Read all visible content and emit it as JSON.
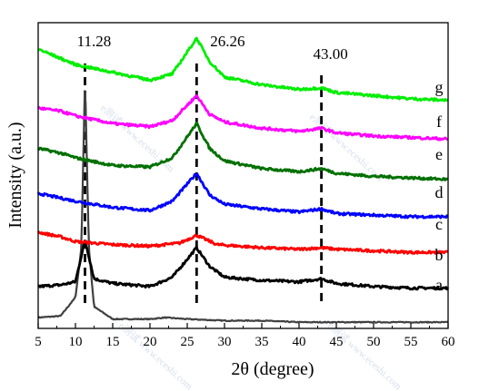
{
  "chart_data": {
    "type": "line",
    "xlabel": "2θ (degree)",
    "ylabel": "Intensity (a.u.)",
    "xlim": [
      5,
      60
    ],
    "x_ticks": [
      5,
      10,
      15,
      20,
      25,
      30,
      35,
      40,
      45,
      50,
      55,
      60
    ],
    "y_ticks_shown": false,
    "grid": false,
    "reference_lines": [
      {
        "x": 11.28,
        "label": "11.28"
      },
      {
        "x": 26.26,
        "label": "26.26"
      },
      {
        "x": 43.0,
        "label": "43.00"
      }
    ],
    "series": [
      {
        "name": "a",
        "color": "#404040",
        "baseline": 0.0,
        "points": [
          [
            5,
            0.05
          ],
          [
            8,
            0.06
          ],
          [
            10,
            0.18
          ],
          [
            10.8,
            0.5
          ],
          [
            11.28,
            1.6
          ],
          [
            11.8,
            0.5
          ],
          [
            12.5,
            0.12
          ],
          [
            15,
            0.04
          ],
          [
            20,
            0.04
          ],
          [
            22,
            0.05
          ],
          [
            25,
            0.04
          ],
          [
            30,
            0.03
          ],
          [
            35,
            0.03
          ],
          [
            40,
            0.02
          ],
          [
            45,
            0.02
          ],
          [
            50,
            0.02
          ],
          [
            55,
            0.02
          ],
          [
            60,
            0.02
          ]
        ]
      },
      {
        "name": "b",
        "color": "#000000",
        "baseline": 0.22,
        "points": [
          [
            5,
            0.25
          ],
          [
            8,
            0.26
          ],
          [
            10,
            0.28
          ],
          [
            11.28,
            0.55
          ],
          [
            12.5,
            0.3
          ],
          [
            15,
            0.27
          ],
          [
            20,
            0.25
          ],
          [
            23,
            0.31
          ],
          [
            26.26,
            0.5
          ],
          [
            28,
            0.38
          ],
          [
            30,
            0.31
          ],
          [
            35,
            0.29
          ],
          [
            40,
            0.28
          ],
          [
            43,
            0.3
          ],
          [
            45,
            0.27
          ],
          [
            50,
            0.25
          ],
          [
            55,
            0.24
          ],
          [
            60,
            0.24
          ]
        ]
      },
      {
        "name": "c",
        "color": "#ff0000",
        "baseline": 0.48,
        "points": [
          [
            5,
            0.6
          ],
          [
            8,
            0.57
          ],
          [
            10,
            0.54
          ],
          [
            15,
            0.52
          ],
          [
            20,
            0.51
          ],
          [
            24,
            0.53
          ],
          [
            26.26,
            0.58
          ],
          [
            29,
            0.52
          ],
          [
            35,
            0.5
          ],
          [
            40,
            0.49
          ],
          [
            43,
            0.5
          ],
          [
            45,
            0.49
          ],
          [
            50,
            0.48
          ],
          [
            55,
            0.47
          ],
          [
            60,
            0.47
          ]
        ]
      },
      {
        "name": "d",
        "color": "#0000ff",
        "baseline": 0.7,
        "points": [
          [
            5,
            0.85
          ],
          [
            8,
            0.82
          ],
          [
            10,
            0.8
          ],
          [
            15,
            0.76
          ],
          [
            20,
            0.74
          ],
          [
            23,
            0.8
          ],
          [
            26.26,
            0.98
          ],
          [
            28,
            0.84
          ],
          [
            30,
            0.78
          ],
          [
            35,
            0.75
          ],
          [
            40,
            0.73
          ],
          [
            43,
            0.75
          ],
          [
            45,
            0.72
          ],
          [
            50,
            0.71
          ],
          [
            55,
            0.7
          ],
          [
            60,
            0.7
          ]
        ]
      },
      {
        "name": "e",
        "color": "#007000",
        "baseline": 0.95,
        "points": [
          [
            5,
            1.14
          ],
          [
            8,
            1.11
          ],
          [
            10,
            1.08
          ],
          [
            15,
            1.03
          ],
          [
            20,
            1.02
          ],
          [
            23,
            1.08
          ],
          [
            26.26,
            1.3
          ],
          [
            28,
            1.14
          ],
          [
            30,
            1.06
          ],
          [
            35,
            1.01
          ],
          [
            40,
            0.99
          ],
          [
            43,
            1.01
          ],
          [
            45,
            0.98
          ],
          [
            50,
            0.96
          ],
          [
            55,
            0.95
          ],
          [
            60,
            0.94
          ]
        ]
      },
      {
        "name": "f",
        "color": "#ff00ff",
        "baseline": 1.2,
        "points": [
          [
            5,
            1.4
          ],
          [
            8,
            1.38
          ],
          [
            10,
            1.35
          ],
          [
            15,
            1.3
          ],
          [
            20,
            1.28
          ],
          [
            23,
            1.32
          ],
          [
            26.26,
            1.48
          ],
          [
            28,
            1.36
          ],
          [
            30,
            1.31
          ],
          [
            35,
            1.27
          ],
          [
            40,
            1.25
          ],
          [
            43,
            1.27
          ],
          [
            45,
            1.24
          ],
          [
            50,
            1.22
          ],
          [
            55,
            1.21
          ],
          [
            60,
            1.2
          ]
        ]
      },
      {
        "name": "g",
        "color": "#00ee00",
        "baseline": 1.45,
        "points": [
          [
            5,
            1.78
          ],
          [
            8,
            1.72
          ],
          [
            10,
            1.68
          ],
          [
            15,
            1.63
          ],
          [
            20,
            1.58
          ],
          [
            23,
            1.62
          ],
          [
            26.26,
            1.85
          ],
          [
            28,
            1.7
          ],
          [
            30,
            1.6
          ],
          [
            35,
            1.55
          ],
          [
            40,
            1.52
          ],
          [
            43,
            1.53
          ],
          [
            45,
            1.5
          ],
          [
            50,
            1.48
          ],
          [
            55,
            1.46
          ],
          [
            60,
            1.45
          ]
        ]
      }
    ]
  },
  "watermark_text": "e测试 www.eceshi.com"
}
